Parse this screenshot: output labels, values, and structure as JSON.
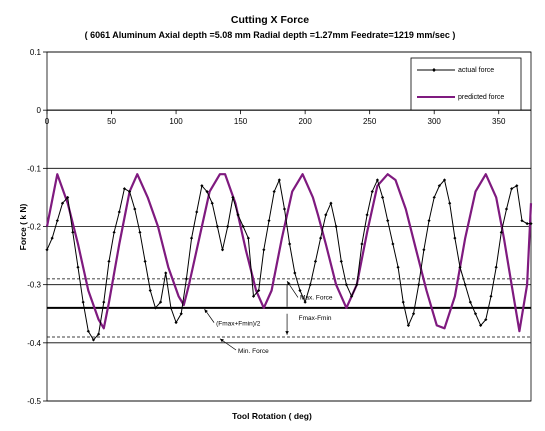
{
  "chart_data": {
    "type": "line",
    "title": "Cutting X Force",
    "subtitle": "( 6061 Aluminum   Axial depth =5.08 mm   Radial depth =1.27mm  Feedrate=1219 mm/sec )",
    "xlabel": "Tool Rotation ( deg)",
    "ylabel": "Force  ( k N)",
    "xlim": [
      0,
      375
    ],
    "ylim": [
      -0.5,
      0.1
    ],
    "x_ticks": [
      0,
      50,
      100,
      150,
      200,
      250,
      300,
      350
    ],
    "y_ticks": [
      0.1,
      0,
      -0.1,
      -0.2,
      -0.3,
      -0.4,
      -0.5
    ],
    "x_tick_labels": [
      "0",
      "50",
      "100",
      "150",
      "200",
      "250",
      "300",
      "350"
    ],
    "y_tick_labels": [
      "0.1",
      "0",
      "-0.1",
      "-0.2",
      "-0.3",
      "-0.4",
      "-0.5"
    ],
    "x_axis_at_y": 0,
    "grid": "horizontal",
    "legend_position": "top-right",
    "colors": {
      "actual": "#000000",
      "predicted": "#7f1a7f"
    },
    "series": [
      {
        "name": "actual force",
        "x": [
          0,
          4,
          8,
          12,
          16,
          20,
          24,
          28,
          32,
          36,
          40,
          44,
          48,
          52,
          56,
          60,
          64,
          68,
          72,
          76,
          80,
          84,
          88,
          92,
          96,
          100,
          104,
          108,
          112,
          116,
          120,
          124,
          128,
          132,
          136,
          140,
          144,
          148,
          152,
          156,
          160,
          164,
          168,
          172,
          176,
          180,
          184,
          188,
          192,
          196,
          200,
          204,
          208,
          212,
          216,
          220,
          224,
          228,
          232,
          236,
          240,
          244,
          248,
          252,
          256,
          260,
          264,
          268,
          272,
          276,
          280,
          284,
          288,
          292,
          296,
          300,
          304,
          308,
          312,
          316,
          320,
          324,
          328,
          332,
          336,
          340,
          344,
          348,
          352,
          356,
          360,
          364,
          368,
          372,
          375
        ],
        "values": [
          -0.24,
          -0.22,
          -0.19,
          -0.16,
          -0.15,
          -0.21,
          -0.27,
          -0.33,
          -0.38,
          -0.395,
          -0.385,
          -0.33,
          -0.26,
          -0.21,
          -0.175,
          -0.135,
          -0.14,
          -0.17,
          -0.21,
          -0.26,
          -0.31,
          -0.34,
          -0.33,
          -0.28,
          -0.34,
          -0.365,
          -0.35,
          -0.29,
          -0.22,
          -0.175,
          -0.13,
          -0.14,
          -0.16,
          -0.2,
          -0.24,
          -0.2,
          -0.15,
          -0.18,
          -0.2,
          -0.22,
          -0.32,
          -0.31,
          -0.24,
          -0.19,
          -0.14,
          -0.12,
          -0.17,
          -0.23,
          -0.28,
          -0.31,
          -0.33,
          -0.3,
          -0.26,
          -0.22,
          -0.18,
          -0.16,
          -0.2,
          -0.26,
          -0.3,
          -0.32,
          -0.3,
          -0.23,
          -0.18,
          -0.14,
          -0.12,
          -0.15,
          -0.19,
          -0.23,
          -0.27,
          -0.33,
          -0.37,
          -0.35,
          -0.3,
          -0.24,
          -0.19,
          -0.15,
          -0.13,
          -0.12,
          -0.16,
          -0.22,
          -0.27,
          -0.3,
          -0.33,
          -0.35,
          -0.37,
          -0.36,
          -0.32,
          -0.27,
          -0.21,
          -0.17,
          -0.135,
          -0.13,
          -0.19,
          -0.195,
          -0.195
        ]
      },
      {
        "name": "predicted force",
        "x": [
          0,
          8,
          16,
          24,
          32,
          40,
          44,
          48,
          56,
          64,
          70,
          78,
          86,
          94,
          102,
          106,
          110,
          118,
          126,
          134,
          138,
          146,
          154,
          162,
          168,
          174,
          182,
          190,
          198,
          206,
          210,
          216,
          224,
          232,
          240,
          248,
          256,
          264,
          270,
          278,
          286,
          294,
          302,
          308,
          316,
          324,
          332,
          340,
          348,
          354,
          360,
          366,
          372,
          375
        ],
        "values": [
          -0.2,
          -0.11,
          -0.16,
          -0.23,
          -0.31,
          -0.36,
          -0.375,
          -0.33,
          -0.23,
          -0.14,
          -0.11,
          -0.15,
          -0.2,
          -0.27,
          -0.32,
          -0.335,
          -0.3,
          -0.22,
          -0.14,
          -0.11,
          -0.11,
          -0.16,
          -0.24,
          -0.31,
          -0.34,
          -0.31,
          -0.22,
          -0.14,
          -0.11,
          -0.15,
          -0.18,
          -0.23,
          -0.3,
          -0.34,
          -0.3,
          -0.21,
          -0.13,
          -0.11,
          -0.12,
          -0.17,
          -0.24,
          -0.31,
          -0.37,
          -0.375,
          -0.32,
          -0.22,
          -0.14,
          -0.11,
          -0.15,
          -0.22,
          -0.3,
          -0.38,
          -0.3,
          -0.16
        ]
      }
    ],
    "reference_lines": [
      {
        "y": -0.29,
        "style": "dashed"
      },
      {
        "y": -0.34,
        "style": "solid-bold"
      },
      {
        "y": -0.39,
        "style": "dashed"
      }
    ],
    "annotations": [
      {
        "text": "Max. Force",
        "x": 196,
        "y": -0.322
      },
      {
        "text": "Fmax-Fmin",
        "x": 195,
        "y": -0.357
      },
      {
        "text": "(Fmax+Fmin)/2",
        "x": 131,
        "y": -0.367
      },
      {
        "text": "Min. Force",
        "x": 148,
        "y": -0.414
      }
    ]
  }
}
